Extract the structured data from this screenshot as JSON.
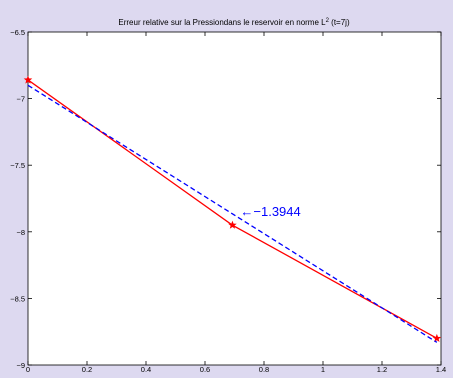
{
  "chart_data": {
    "type": "line",
    "title": "Erreur relative sur la Pressiondans le reservoir en norme L",
    "title_sup": "2",
    "title_suffix": " (t=7j)",
    "xlim": [
      0,
      1.4
    ],
    "ylim": [
      -9,
      -6.5
    ],
    "x_ticks": [
      0,
      0.2,
      0.4,
      0.6,
      0.8,
      1,
      1.2,
      1.4
    ],
    "x_tick_labels": [
      "0",
      "0.2",
      "0.4",
      "0.6",
      "0.8",
      "1",
      "1.2",
      "1.4"
    ],
    "y_ticks": [
      -9,
      -8.5,
      -8,
      -7.5,
      -7,
      -6.5
    ],
    "y_tick_labels": [
      "−9",
      "−8.5",
      "−8",
      "−7.5",
      "−7",
      "−6.5"
    ],
    "grid": false,
    "series": [
      {
        "style": "solid",
        "marker": "star",
        "color": "#ff0000",
        "x": [
          0,
          0.693,
          1.386
        ],
        "y": [
          -6.86,
          -7.95,
          -8.8
        ]
      },
      {
        "style": "dashed",
        "marker": "none",
        "color": "#0000ff",
        "x": [
          0,
          1.386
        ],
        "y": [
          -6.9,
          -8.83
        ]
      }
    ],
    "annotations": [
      {
        "text": "←−1.3944",
        "x": 0.72,
        "y": -7.85,
        "color": "#0000ff"
      }
    ]
  }
}
